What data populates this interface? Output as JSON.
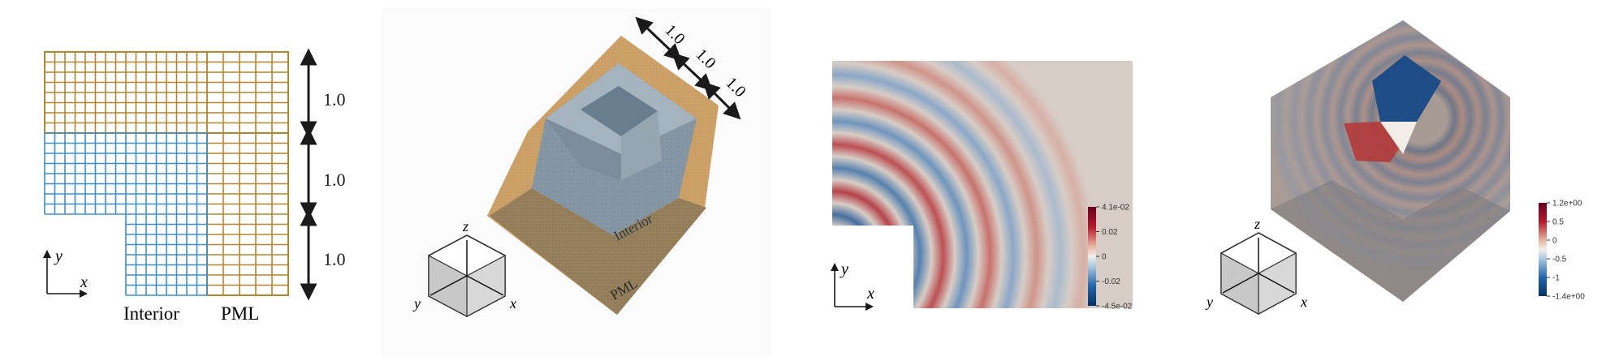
{
  "colors": {
    "interior": "#3c8fcd",
    "pml": "#b3862f",
    "red": "#a3162a",
    "blue": "#17427d",
    "neutral": "#d6ccc6"
  },
  "panel_a": {
    "dimension_labels": [
      "1.0",
      "1.0",
      "1.0"
    ],
    "axis_y": "y",
    "axis_x": "x",
    "label_interior": "Interior",
    "label_pml": "PML"
  },
  "panel_b": {
    "dimension_labels": [
      "1.0",
      "1.0",
      "1.0"
    ],
    "label_interior": "Interior",
    "label_pml": "PML",
    "axis_z": "z",
    "axis_y": "y",
    "axis_x": "x"
  },
  "panel_c": {
    "axis_y": "y",
    "axis_x": "x",
    "colorbar": {
      "ticks": [
        "4.1e-02",
        "0.02",
        "0",
        "-0.02",
        "-4.5e-02"
      ]
    }
  },
  "panel_d": {
    "axis_z": "z",
    "axis_y": "y",
    "axis_x": "x",
    "colorbar": {
      "ticks": [
        "1.2e+00",
        "0.5",
        "0",
        "-0.5",
        "-1",
        "-1.4e+00"
      ]
    }
  }
}
